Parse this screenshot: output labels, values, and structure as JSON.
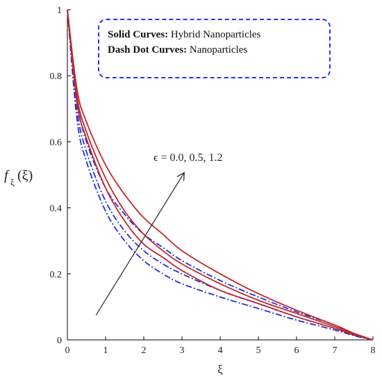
{
  "chart_data": {
    "type": "line",
    "xlabel": "ξ",
    "ylabel_main": "f",
    "ylabel_sub": "ξ",
    "ylabel_arg": "(ξ)",
    "xlim": [
      0,
      8
    ],
    "ylim": [
      0,
      1
    ],
    "xticks": [
      "0",
      "1",
      "2",
      "3",
      "4",
      "5",
      "6",
      "7",
      "8"
    ],
    "yticks": [
      "0",
      "0.2",
      "0.4",
      "0.6",
      "0.8",
      "1"
    ],
    "legend": {
      "solid_label": "Solid Curves:",
      "solid_text": "Hybrid Nanoparticles",
      "dash_label": "Dash Dot Curves:",
      "dash_text": "Nanoparticles"
    },
    "annotation": "ϵ = 0.0, 0.5, 1.2",
    "colors": {
      "solid": "#c0282d",
      "dashdot": "#1f2fd6",
      "arrow": "#333333",
      "legend_border": "#2233ff"
    },
    "series": [
      {
        "style": "solid",
        "x": [
          0,
          0.25,
          0.5,
          1,
          1.5,
          2,
          2.5,
          3,
          4,
          5,
          6,
          7,
          7.5,
          8
        ],
        "y": [
          1,
          0.76,
          0.66,
          0.53,
          0.44,
          0.37,
          0.32,
          0.27,
          0.2,
          0.14,
          0.09,
          0.045,
          0.02,
          0
        ]
      },
      {
        "style": "solid",
        "x": [
          0,
          0.25,
          0.5,
          1,
          1.5,
          2,
          2.5,
          3,
          4,
          5,
          6,
          7,
          7.5,
          8
        ],
        "y": [
          1,
          0.74,
          0.63,
          0.49,
          0.39,
          0.32,
          0.27,
          0.23,
          0.17,
          0.12,
          0.08,
          0.04,
          0.018,
          0
        ]
      },
      {
        "style": "solid",
        "x": [
          0,
          0.25,
          0.5,
          1,
          1.5,
          2,
          2.5,
          3,
          4,
          5,
          6,
          7,
          7.5,
          8
        ],
        "y": [
          1,
          0.72,
          0.61,
          0.46,
          0.36,
          0.29,
          0.25,
          0.21,
          0.15,
          0.11,
          0.07,
          0.035,
          0.016,
          0
        ]
      },
      {
        "style": "dashdot",
        "x": [
          0,
          0.25,
          0.5,
          1,
          1.5,
          2,
          2.5,
          3,
          4,
          5,
          6,
          7,
          7.5,
          8
        ],
        "y": [
          1,
          0.73,
          0.6,
          0.46,
          0.38,
          0.32,
          0.28,
          0.24,
          0.18,
          0.13,
          0.085,
          0.045,
          0.02,
          0
        ]
      },
      {
        "style": "dashdot",
        "x": [
          0,
          0.25,
          0.5,
          1,
          1.5,
          2,
          2.5,
          3,
          4,
          5,
          6,
          7,
          7.5,
          8
        ],
        "y": [
          1,
          0.7,
          0.57,
          0.42,
          0.33,
          0.27,
          0.23,
          0.2,
          0.15,
          0.11,
          0.07,
          0.035,
          0.015,
          0
        ]
      },
      {
        "style": "dashdot",
        "x": [
          0,
          0.25,
          0.5,
          1,
          1.5,
          2,
          2.5,
          3,
          4,
          5,
          6,
          7,
          7.5,
          8
        ],
        "y": [
          1,
          0.67,
          0.54,
          0.39,
          0.3,
          0.24,
          0.2,
          0.17,
          0.13,
          0.095,
          0.06,
          0.03,
          0.013,
          0
        ]
      }
    ],
    "arrow": {
      "from": [
        0.75,
        0.075
      ],
      "to": [
        3.05,
        0.505
      ]
    }
  }
}
